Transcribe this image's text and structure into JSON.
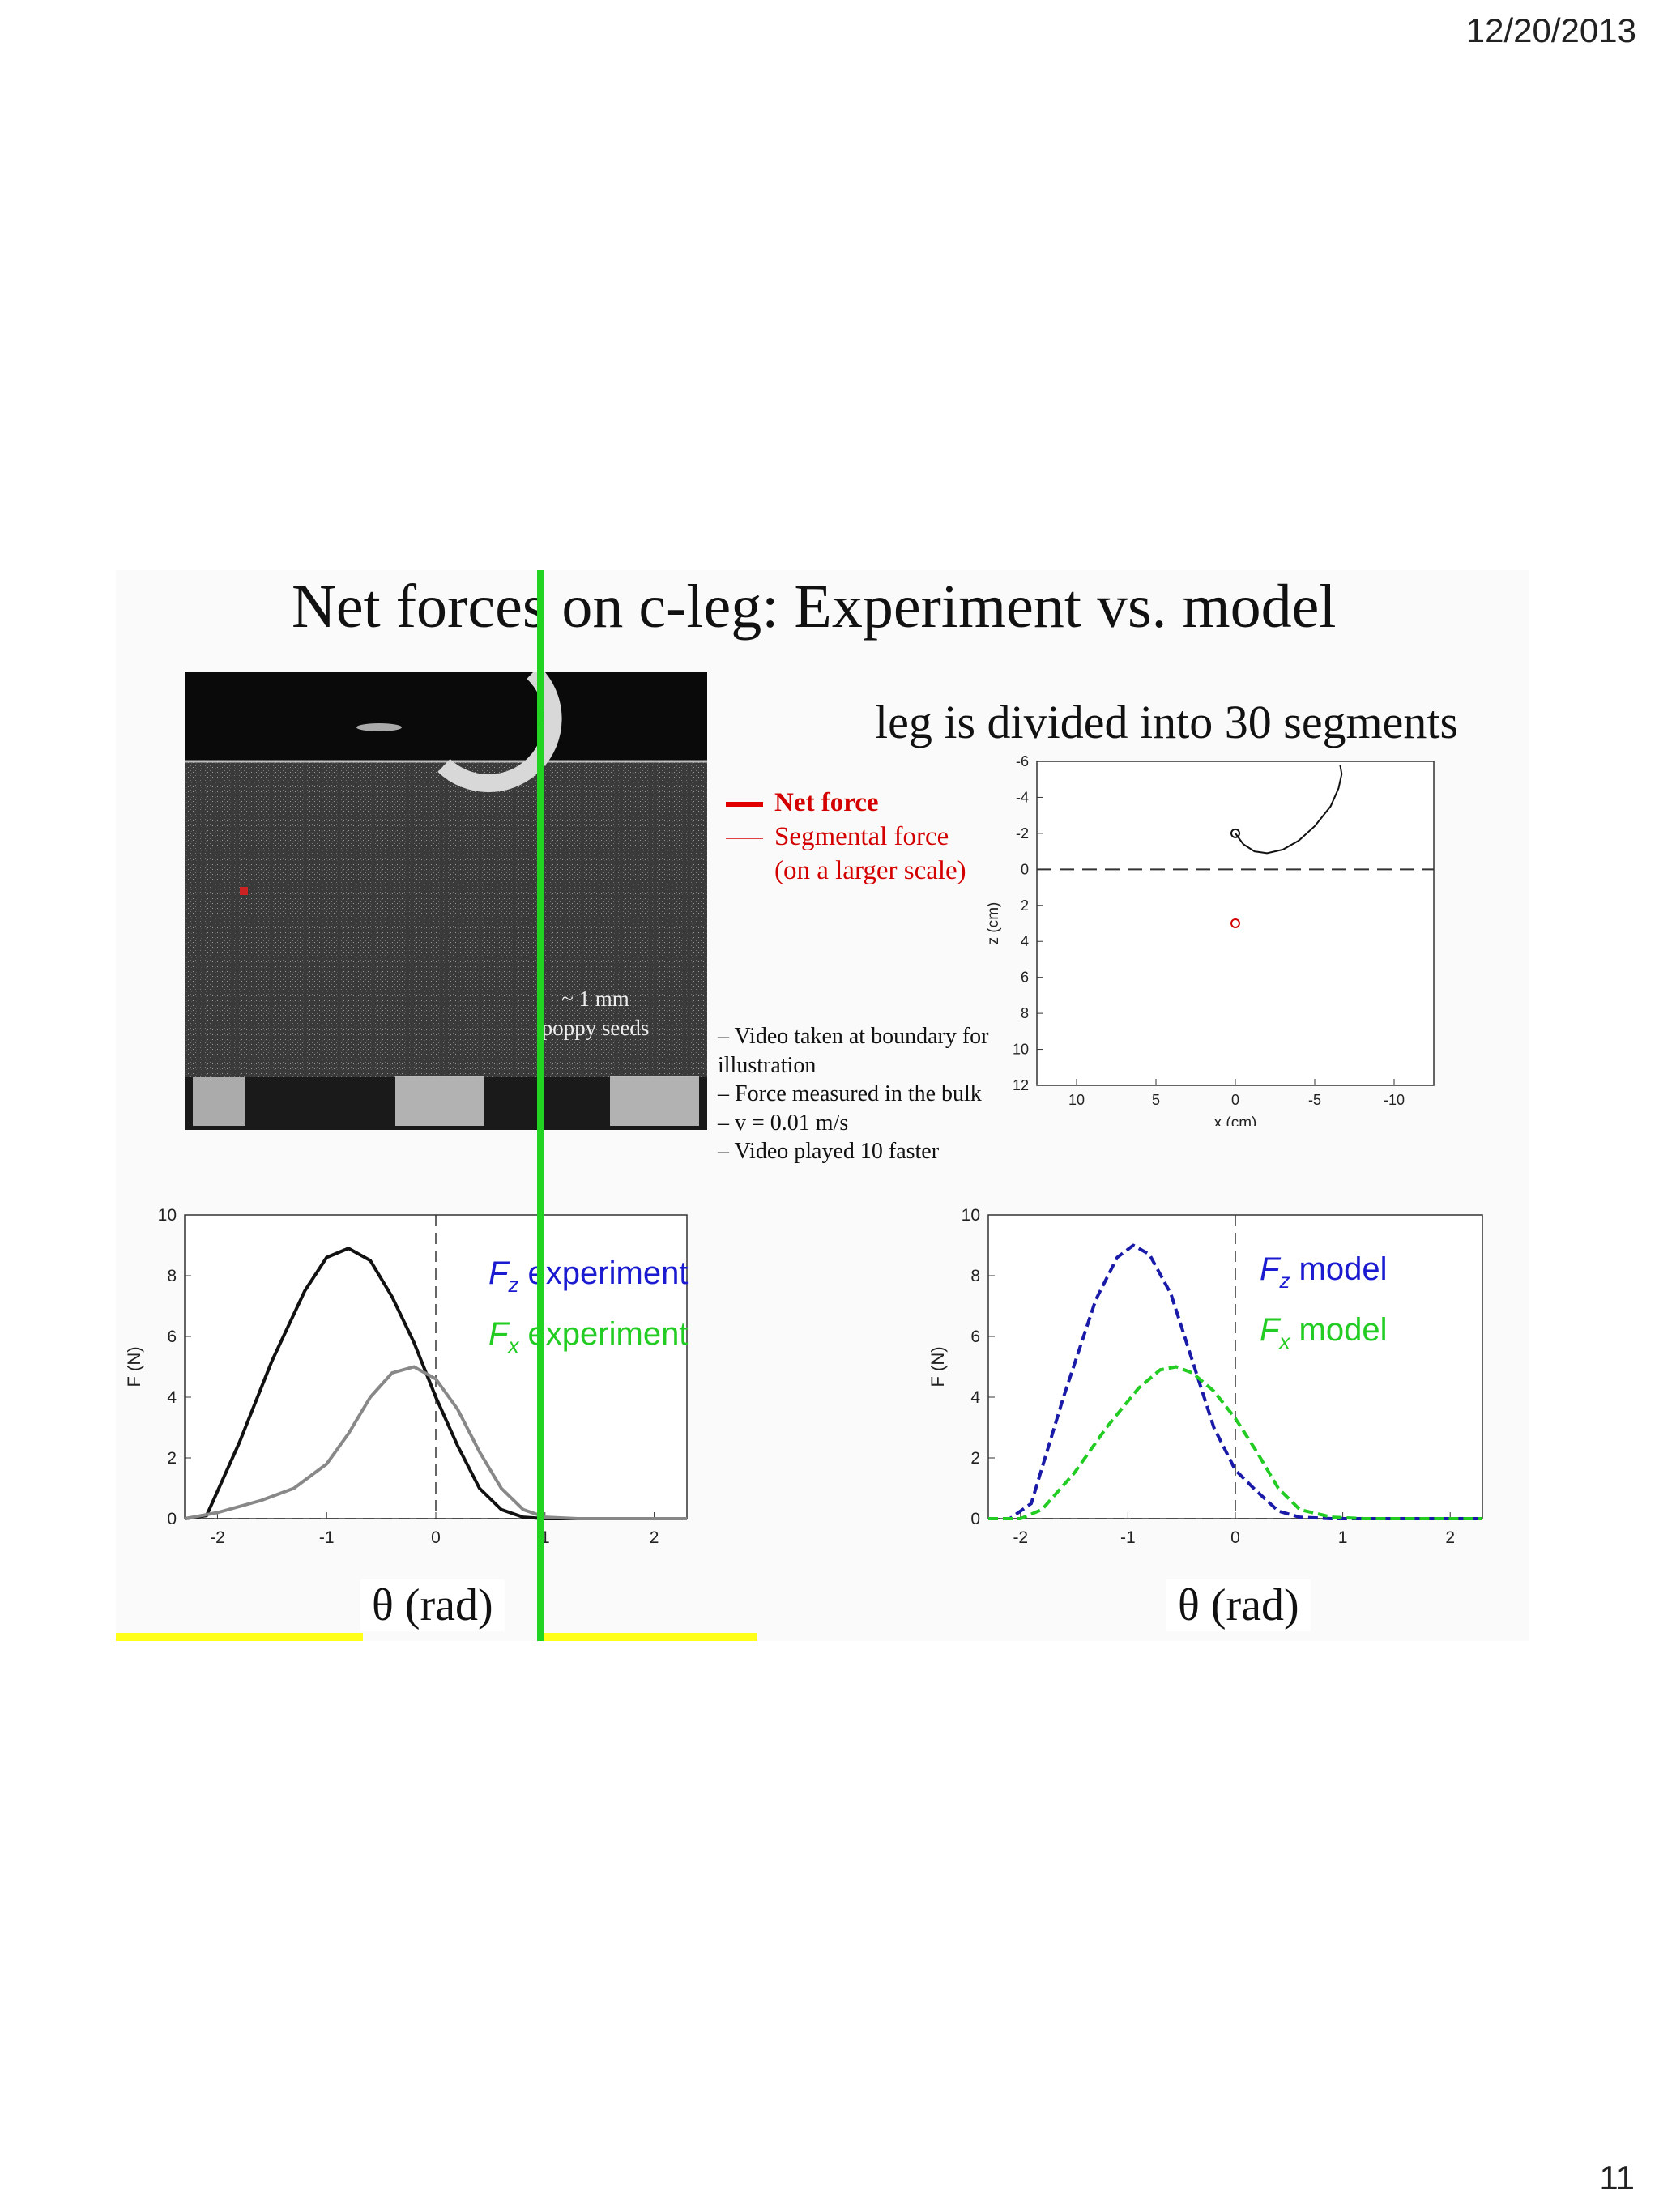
{
  "header": {
    "date": "12/20/2013"
  },
  "footer": {
    "page_number": "11"
  },
  "slide": {
    "title": "Net forces on c-leg: Experiment vs. model",
    "subtitle": "leg is divided into 30 segments",
    "seeds_label": [
      "~ 1 mm",
      "poppy seeds"
    ],
    "legend": {
      "net_force": "Net force",
      "segmental_force": "Segmental force",
      "segmental_note": "(on a larger scale)",
      "color": "#d40000"
    },
    "notes": [
      "– Video taken at boundary for",
      "illustration",
      "– Force measured in the bulk",
      "– v = 0.01 m/s",
      "– Video played 10    faster"
    ],
    "x_axis_label": "θ (rad)",
    "colors": {
      "fz": "#1a1ad0",
      "fx": "#22cc22",
      "highlight": "#ffff1a",
      "marker": "#21d421"
    }
  },
  "chart_data": [
    {
      "type": "line",
      "id": "leg-trajectory",
      "xlabel": "x (cm)",
      "ylabel": "z (cm)",
      "xlim": [
        12.5,
        -12.5
      ],
      "ylim": [
        -6,
        12
      ],
      "x_ticks": [
        10,
        5,
        0,
        -5,
        -10
      ],
      "y_ticks": [
        -6,
        -4,
        -2,
        0,
        2,
        4,
        6,
        8,
        10,
        12
      ],
      "y_reversed": true,
      "grid": false,
      "reference_line": {
        "z": 0,
        "style": "dashed"
      },
      "series": [
        {
          "x": [
            0,
            -0.5,
            -1.2,
            -2,
            -3,
            -4,
            -5,
            -6,
            -6.5,
            -6.7,
            -6.6
          ],
          "z": [
            -2,
            -1.4,
            -1.0,
            -0.9,
            -1.1,
            -1.6,
            -2.4,
            -3.5,
            -4.5,
            -5.3,
            -5.8
          ]
        }
      ],
      "markers": [
        {
          "x": 0,
          "z": -2,
          "color": "#111111"
        },
        {
          "x": 0,
          "z": 3,
          "color": "#d40000"
        }
      ]
    },
    {
      "type": "line",
      "id": "experiment",
      "xlabel": "θ (rad)",
      "ylabel": "F (N)",
      "xlim": [
        -2.3,
        2.3
      ],
      "ylim": [
        0,
        10
      ],
      "x_ticks": [
        -2,
        -1,
        0,
        1,
        2
      ],
      "y_ticks": [
        0,
        2,
        4,
        6,
        8,
        10
      ],
      "reference_lines": {
        "x": 0,
        "y": 0
      },
      "series": [
        {
          "name": "F_z experiment",
          "legend_var": "F",
          "legend_sub": "z",
          "legend_text": "experiment",
          "color": "#1a1ad0",
          "line_color": "#111111",
          "x": [
            -2.3,
            -2.1,
            -1.8,
            -1.5,
            -1.2,
            -1.0,
            -0.8,
            -0.6,
            -0.4,
            -0.2,
            0,
            0.2,
            0.4,
            0.6,
            0.8,
            1.0,
            1.3,
            2.3
          ],
          "y": [
            0,
            0.1,
            2.5,
            5.2,
            7.5,
            8.6,
            8.9,
            8.5,
            7.3,
            5.8,
            4.0,
            2.4,
            1.0,
            0.3,
            0.05,
            0,
            0,
            0
          ]
        },
        {
          "name": "F_x experiment",
          "legend_var": "F",
          "legend_sub": "x",
          "legend_text": "experiment",
          "color": "#22cc22",
          "line_color": "#888888",
          "x": [
            -2.3,
            -2.0,
            -1.6,
            -1.3,
            -1.0,
            -0.8,
            -0.6,
            -0.4,
            -0.2,
            0,
            0.2,
            0.4,
            0.6,
            0.8,
            1.0,
            1.3,
            2.3
          ],
          "y": [
            0,
            0.2,
            0.6,
            1.0,
            1.8,
            2.8,
            4.0,
            4.8,
            5.0,
            4.6,
            3.6,
            2.2,
            1.0,
            0.3,
            0.05,
            0,
            0
          ]
        }
      ]
    },
    {
      "type": "line",
      "id": "model",
      "xlabel": "θ (rad)",
      "ylabel": "F (N)",
      "xlim": [
        -2.3,
        2.3
      ],
      "ylim": [
        0,
        10
      ],
      "x_ticks": [
        -2,
        -1,
        0,
        1,
        2
      ],
      "y_ticks": [
        0,
        2,
        4,
        6,
        8,
        10
      ],
      "reference_lines": {
        "x": 0,
        "y": 0
      },
      "series": [
        {
          "name": "F_z model",
          "legend_var": "F",
          "legend_sub": "z",
          "legend_text": "model",
          "color": "#1a1ad0",
          "line_color": "#1a1aa8",
          "dash": true,
          "x": [
            -2.3,
            -2.1,
            -1.9,
            -1.6,
            -1.3,
            -1.1,
            -0.95,
            -0.8,
            -0.6,
            -0.4,
            -0.2,
            0,
            0.2,
            0.4,
            0.6,
            0.9,
            2.3
          ],
          "y": [
            0,
            0,
            0.5,
            4.0,
            7.2,
            8.6,
            9.0,
            8.7,
            7.4,
            5.2,
            3.0,
            1.6,
            0.9,
            0.25,
            0.05,
            0,
            0
          ]
        },
        {
          "name": "F_x model",
          "legend_var": "F",
          "legend_sub": "x",
          "legend_text": "model",
          "color": "#22cc22",
          "line_color": "#22cc22",
          "dash": true,
          "x": [
            -2.3,
            -2.0,
            -1.8,
            -1.5,
            -1.2,
            -0.9,
            -0.7,
            -0.55,
            -0.4,
            -0.2,
            0,
            0.2,
            0.4,
            0.6,
            0.9,
            1.2,
            2.3
          ],
          "y": [
            0,
            0,
            0.3,
            1.5,
            3.0,
            4.3,
            4.9,
            5.0,
            4.8,
            4.2,
            3.3,
            2.2,
            1.0,
            0.3,
            0.05,
            0,
            0
          ]
        }
      ]
    }
  ]
}
